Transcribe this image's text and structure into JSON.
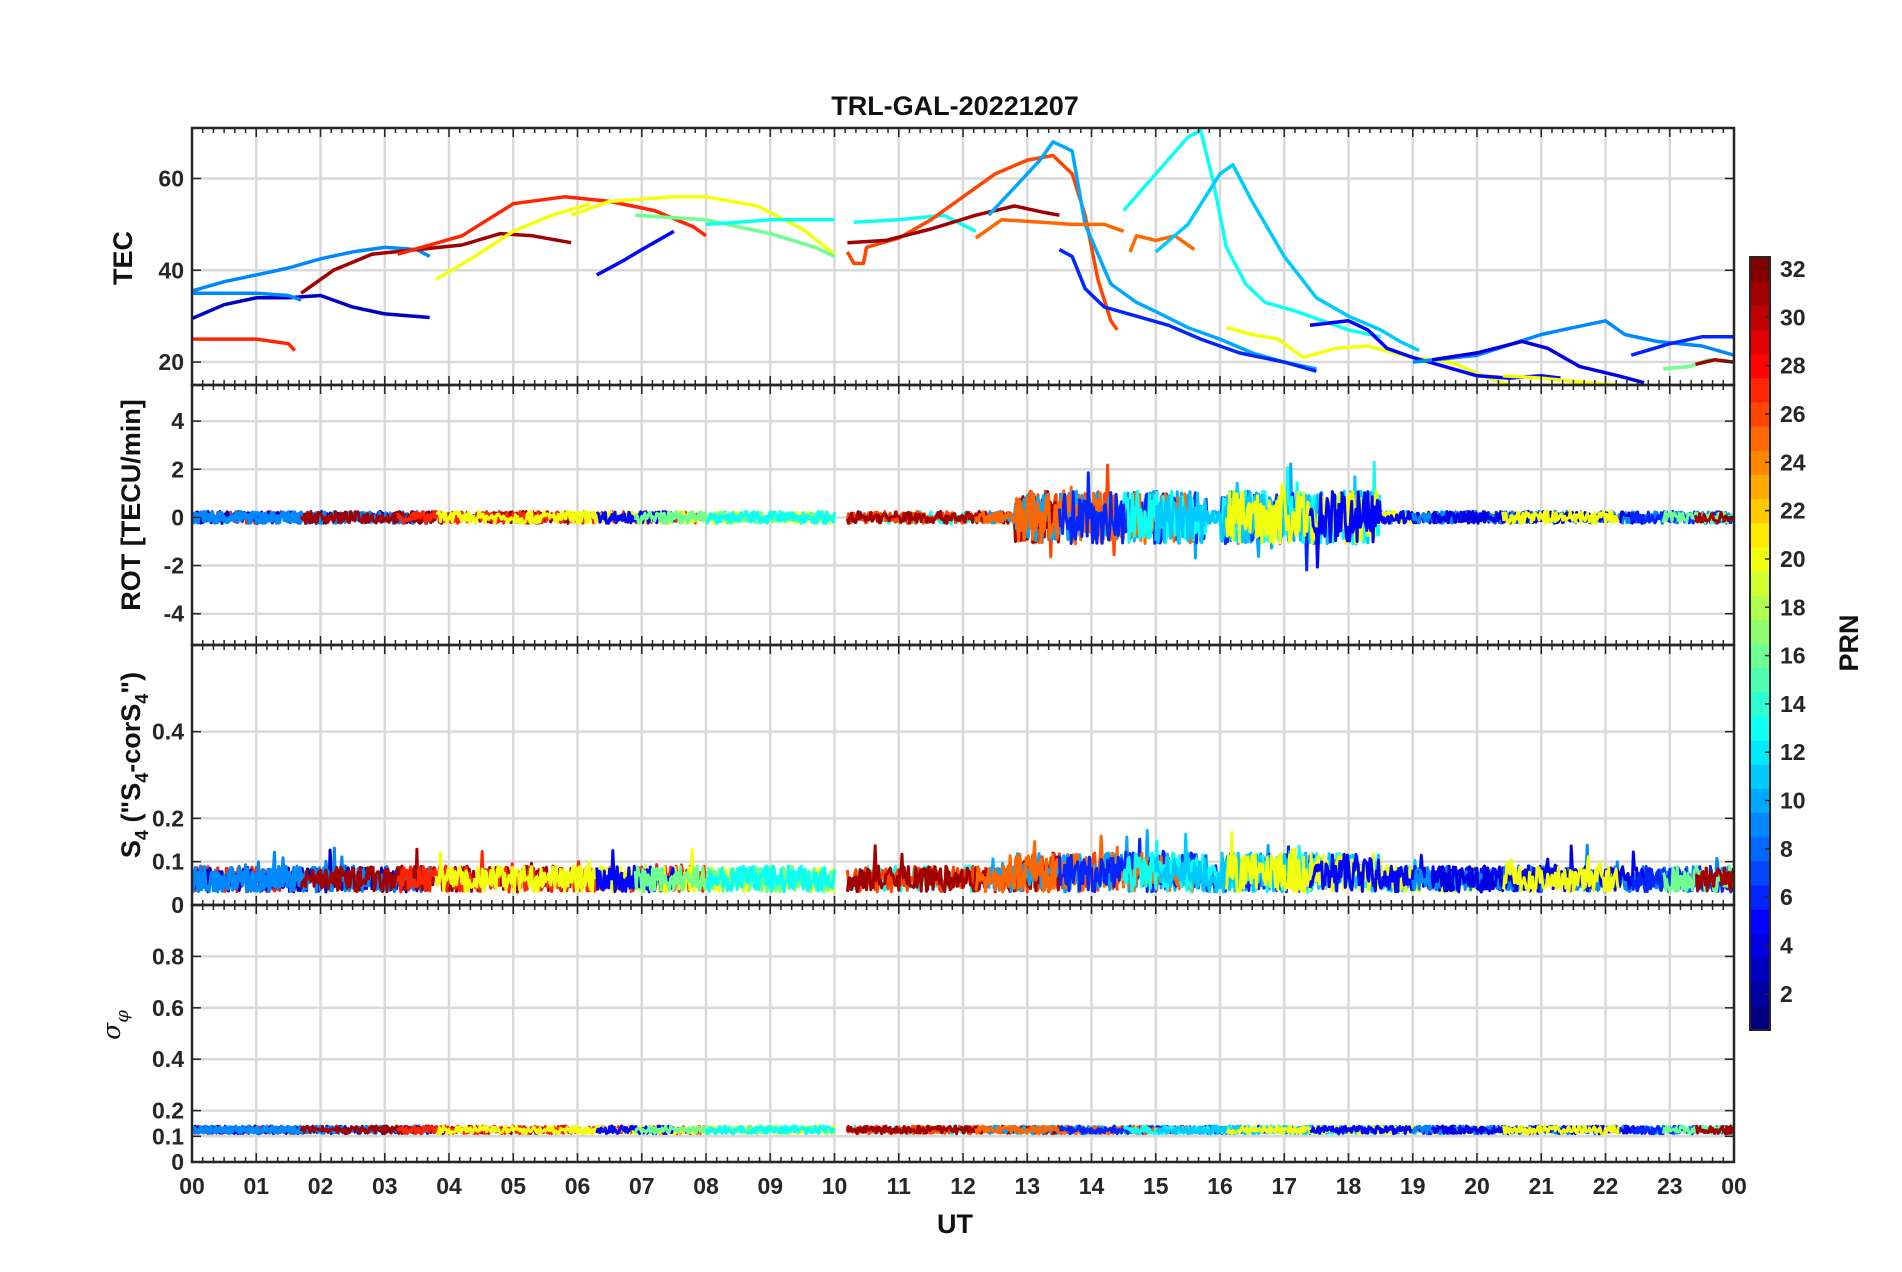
{
  "chart_data": {
    "title": "TRL-GAL-20221207",
    "type": "line",
    "x_axis": {
      "label": "UT",
      "range_hours": [
        0,
        24
      ],
      "tick_labels": [
        "00",
        "01",
        "02",
        "03",
        "04",
        "05",
        "06",
        "07",
        "08",
        "09",
        "10",
        "11",
        "12",
        "13",
        "14",
        "15",
        "16",
        "17",
        "18",
        "19",
        "20",
        "21",
        "22",
        "23",
        "00"
      ]
    },
    "grid": true,
    "panels": [
      {
        "id": "tec",
        "ylabel": "TEC",
        "ylim": [
          15,
          71
        ],
        "yticks": [
          20,
          40,
          60
        ],
        "series": [
          {
            "prn": 27,
            "points": [
              [
                0,
                25
              ],
              [
                1,
                25
              ],
              [
                1.5,
                24
              ],
              [
                1.6,
                22.5
              ]
            ]
          },
          {
            "prn": 3,
            "points": [
              [
                0,
                29.5
              ],
              [
                0.5,
                32.5
              ],
              [
                1,
                34
              ],
              [
                1.5,
                34
              ],
              [
                2,
                34.5
              ],
              [
                2.5,
                32
              ],
              [
                3,
                30.5
              ],
              [
                3.7,
                29.7
              ]
            ]
          },
          {
            "prn": 9,
            "points": [
              [
                0,
                35.5
              ],
              [
                0.5,
                37.5
              ],
              [
                1,
                39
              ],
              [
                1.5,
                40.5
              ],
              [
                2,
                42.5
              ],
              [
                2.5,
                44
              ],
              [
                3,
                45
              ],
              [
                3.5,
                44.5
              ],
              [
                3.7,
                43
              ]
            ]
          },
          {
            "prn": 9,
            "points": [
              [
                0,
                35
              ],
              [
                1,
                35
              ],
              [
                1.5,
                34.5
              ],
              [
                1.7,
                33.5
              ]
            ]
          },
          {
            "prn": 31,
            "points": [
              [
                1.7,
                35
              ],
              [
                2.2,
                40
              ],
              [
                2.8,
                43.5
              ],
              [
                3.5,
                44.5
              ],
              [
                4.2,
                45.5
              ],
              [
                4.8,
                48
              ],
              [
                5.3,
                47.5
              ],
              [
                5.9,
                46
              ]
            ]
          },
          {
            "prn": 27,
            "points": [
              [
                3.2,
                43.5
              ],
              [
                4.2,
                47.5
              ],
              [
                5,
                54.5
              ],
              [
                5.8,
                56
              ],
              [
                6.5,
                55
              ],
              [
                7.2,
                53
              ],
              [
                7.8,
                49.5
              ],
              [
                8,
                47.5
              ]
            ]
          },
          {
            "prn": 20,
            "points": [
              [
                3.8,
                38
              ],
              [
                4.4,
                43
              ],
              [
                5,
                48.5
              ],
              [
                5.6,
                52
              ],
              [
                6.2,
                54.5
              ]
            ]
          },
          {
            "prn": 20,
            "points": [
              [
                5.9,
                52
              ],
              [
                6.5,
                55
              ],
              [
                7.5,
                56
              ],
              [
                8,
                56
              ],
              [
                8.8,
                54
              ],
              [
                9.5,
                49
              ],
              [
                10,
                43.5
              ]
            ]
          },
          {
            "prn": 5,
            "points": [
              [
                6.3,
                39
              ],
              [
                6.7,
                42
              ],
              [
                7,
                44.5
              ],
              [
                7.5,
                48.5
              ]
            ]
          },
          {
            "prn": 16,
            "points": [
              [
                6.9,
                52
              ],
              [
                8,
                51
              ],
              [
                9,
                48
              ],
              [
                9.7,
                45
              ],
              [
                10,
                43
              ]
            ]
          },
          {
            "prn": 13,
            "points": [
              [
                8,
                50
              ],
              [
                9,
                51
              ],
              [
                10,
                51
              ]
            ]
          },
          {
            "prn": 13,
            "points": [
              [
                10.3,
                50.5
              ],
              [
                11,
                51
              ],
              [
                11.7,
                52
              ],
              [
                12.2,
                48.5
              ]
            ]
          },
          {
            "prn": 26,
            "points": [
              [
                10.2,
                44
              ],
              [
                10.3,
                41.5
              ],
              [
                10.45,
                41.5
              ],
              [
                10.5,
                45
              ],
              [
                11,
                47
              ],
              [
                11.5,
                51
              ],
              [
                12,
                56
              ],
              [
                12.5,
                61
              ],
              [
                13,
                64
              ],
              [
                13.4,
                65
              ],
              [
                13.7,
                61
              ],
              [
                13.9,
                52
              ],
              [
                14.1,
                38
              ],
              [
                14.3,
                29
              ],
              [
                14.4,
                27
              ]
            ]
          },
          {
            "prn": 31,
            "points": [
              [
                10.2,
                46
              ],
              [
                10.8,
                46.5
              ],
              [
                11.5,
                49
              ],
              [
                12.2,
                52
              ],
              [
                12.8,
                54
              ],
              [
                13.3,
                52.5
              ],
              [
                13.5,
                52
              ]
            ]
          },
          {
            "prn": 10,
            "points": [
              [
                12.4,
                52
              ],
              [
                12.8,
                58
              ],
              [
                13.2,
                64
              ],
              [
                13.4,
                68
              ],
              [
                13.7,
                66
              ],
              [
                13.9,
                50
              ],
              [
                14.3,
                37
              ],
              [
                14.7,
                33
              ],
              [
                15,
                31
              ],
              [
                15.5,
                27.5
              ],
              [
                16,
                25
              ],
              [
                16.5,
                22
              ],
              [
                17,
                20
              ],
              [
                17.5,
                18.5
              ]
            ]
          },
          {
            "prn": 25,
            "points": [
              [
                12.2,
                47
              ],
              [
                12.6,
                51
              ],
              [
                13.2,
                50.5
              ],
              [
                13.7,
                50
              ],
              [
                14.2,
                50
              ],
              [
                14.5,
                48.5
              ]
            ]
          },
          {
            "prn": 6,
            "points": [
              [
                13.5,
                44.5
              ],
              [
                13.7,
                43
              ],
              [
                13.9,
                36
              ],
              [
                14.2,
                32
              ],
              [
                14.7,
                30
              ],
              [
                15.2,
                28
              ],
              [
                15.7,
                25
              ],
              [
                16.3,
                22
              ],
              [
                17,
                20
              ],
              [
                17.5,
                18
              ]
            ]
          },
          {
            "prn": 25,
            "points": [
              [
                14.6,
                44
              ],
              [
                14.7,
                47.5
              ],
              [
                15,
                46.5
              ],
              [
                15.3,
                47.5
              ],
              [
                15.6,
                44.5
              ]
            ]
          },
          {
            "prn": 13,
            "points": [
              [
                14.5,
                53
              ],
              [
                15,
                61
              ],
              [
                15.5,
                69
              ],
              [
                15.7,
                70.5
              ],
              [
                15.9,
                59
              ],
              [
                16.1,
                45
              ],
              [
                16.4,
                37
              ],
              [
                16.7,
                33
              ],
              [
                17.2,
                31
              ],
              [
                17.6,
                29
              ],
              [
                18,
                27
              ],
              [
                18.5,
                25.5
              ]
            ]
          },
          {
            "prn": 11,
            "points": [
              [
                15,
                44
              ],
              [
                15.5,
                50
              ],
              [
                16,
                61
              ],
              [
                16.2,
                63
              ],
              [
                16.5,
                55
              ],
              [
                17,
                43
              ],
              [
                17.5,
                34
              ],
              [
                18,
                30
              ],
              [
                18.5,
                27
              ],
              [
                18.8,
                24.5
              ],
              [
                19.1,
                22.5
              ]
            ]
          },
          {
            "prn": 20,
            "points": [
              [
                16.1,
                27.5
              ],
              [
                16.5,
                26
              ],
              [
                16.9,
                25
              ],
              [
                17.3,
                21
              ],
              [
                17.8,
                23
              ],
              [
                18.3,
                23.5
              ],
              [
                19,
                21
              ],
              [
                19.6,
                20
              ],
              [
                20,
                17.5
              ],
              [
                20.5,
                15
              ]
            ]
          },
          {
            "prn": 5,
            "points": [
              [
                17.4,
                28
              ],
              [
                18,
                29
              ],
              [
                18.3,
                27
              ],
              [
                18.6,
                23
              ],
              [
                19,
                21
              ],
              [
                19.5,
                19
              ],
              [
                20,
                17
              ],
              [
                20.5,
                16.5
              ],
              [
                21,
                17
              ],
              [
                21.3,
                16.5
              ]
            ]
          },
          {
            "prn": 9,
            "points": [
              [
                19,
                20
              ],
              [
                20,
                21.5
              ],
              [
                21,
                26
              ],
              [
                21.5,
                27.5
              ],
              [
                22,
                29
              ],
              [
                22.3,
                26
              ],
              [
                22.8,
                24.5
              ],
              [
                23.5,
                23.5
              ],
              [
                24,
                21.5
              ]
            ]
          },
          {
            "prn": 4,
            "points": [
              [
                19.3,
                20.5
              ],
              [
                20,
                22
              ],
              [
                20.7,
                24.5
              ],
              [
                21.1,
                23
              ],
              [
                21.6,
                19
              ],
              [
                22.2,
                17
              ],
              [
                22.6,
                15.5
              ]
            ]
          },
          {
            "prn": 20,
            "points": [
              [
                20.4,
                17
              ],
              [
                21,
                16.5
              ],
              [
                21.7,
                15.5
              ],
              [
                22.2,
                15
              ]
            ]
          },
          {
            "prn": 6,
            "points": [
              [
                22.4,
                21.5
              ],
              [
                23,
                24
              ],
              [
                23.5,
                25.5
              ],
              [
                24,
                25.5
              ]
            ]
          },
          {
            "prn": 16,
            "points": [
              [
                22.9,
                18.5
              ],
              [
                23.3,
                19
              ],
              [
                23.6,
                20.5
              ],
              [
                24,
                20
              ]
            ]
          },
          {
            "prn": 31,
            "points": [
              [
                23.4,
                19.5
              ],
              [
                23.7,
                20.5
              ],
              [
                24,
                20
              ]
            ]
          }
        ]
      },
      {
        "id": "rot",
        "ylabel": "ROT [TECU/min]",
        "ylim": [
          -5.3,
          5.5
        ],
        "yticks": [
          -4,
          -2,
          0,
          2,
          4
        ],
        "style": "noisy"
      },
      {
        "id": "s4",
        "ylabel": "S4 (\"S4-corS4\")",
        "ylabel_parts": {
          "a": "S",
          "b": "4",
          "c": " (\"S",
          "d": "4",
          "e": "-corS",
          "f": "4",
          "g": "\")"
        },
        "ylim": [
          0,
          0.6
        ],
        "yticks": [
          0,
          0.1,
          0.2,
          0.4
        ],
        "style": "noisy"
      },
      {
        "id": "sigma",
        "ylabel": "σφ",
        "ylabel_parts": {
          "a": "σ",
          "b": "φ"
        },
        "ylim": [
          0,
          1
        ],
        "yticks": [
          0,
          0.1,
          0.2,
          0.4,
          0.6,
          0.8
        ],
        "style": "flat"
      }
    ],
    "colorbar": {
      "label": "PRN",
      "colormap": "jet",
      "range": [
        1,
        32
      ],
      "tick_labels": [
        2,
        4,
        6,
        8,
        10,
        12,
        14,
        16,
        18,
        20,
        22,
        24,
        26,
        28,
        30,
        32
      ]
    }
  }
}
